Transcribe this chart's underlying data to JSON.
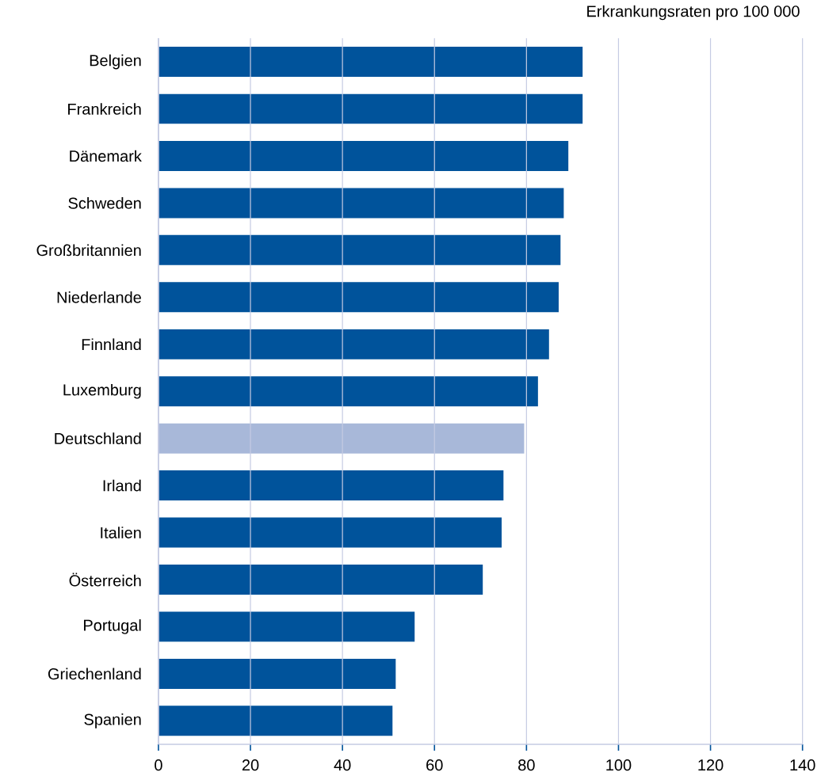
{
  "chart_data": {
    "type": "bar",
    "orientation": "horizontal",
    "title": "Erkrankungsraten pro 100 000",
    "categories": [
      "Belgien",
      "Frankreich",
      "Dänemark",
      "Schweden",
      "Großbritannien",
      "Niederlande",
      "Finnland",
      "Luxemburg",
      "Deutschland",
      "Irland",
      "Italien",
      "Österreich",
      "Portugal",
      "Griechenland",
      "Spanien"
    ],
    "values": [
      92.2,
      92.2,
      89.1,
      88.1,
      87.4,
      87.0,
      84.9,
      82.5,
      79.5,
      75.0,
      74.6,
      70.5,
      55.7,
      51.6,
      50.9
    ],
    "colors": [
      "#00539b",
      "#00539b",
      "#00539b",
      "#00539b",
      "#00539b",
      "#00539b",
      "#00539b",
      "#00539b",
      "#a8b8d9",
      "#00539b",
      "#00539b",
      "#00539b",
      "#00539b",
      "#00539b",
      "#00539b"
    ],
    "xlim": [
      0,
      140
    ],
    "xticks": [
      0,
      20,
      40,
      60,
      80,
      100,
      120,
      140
    ],
    "grid": "x"
  }
}
